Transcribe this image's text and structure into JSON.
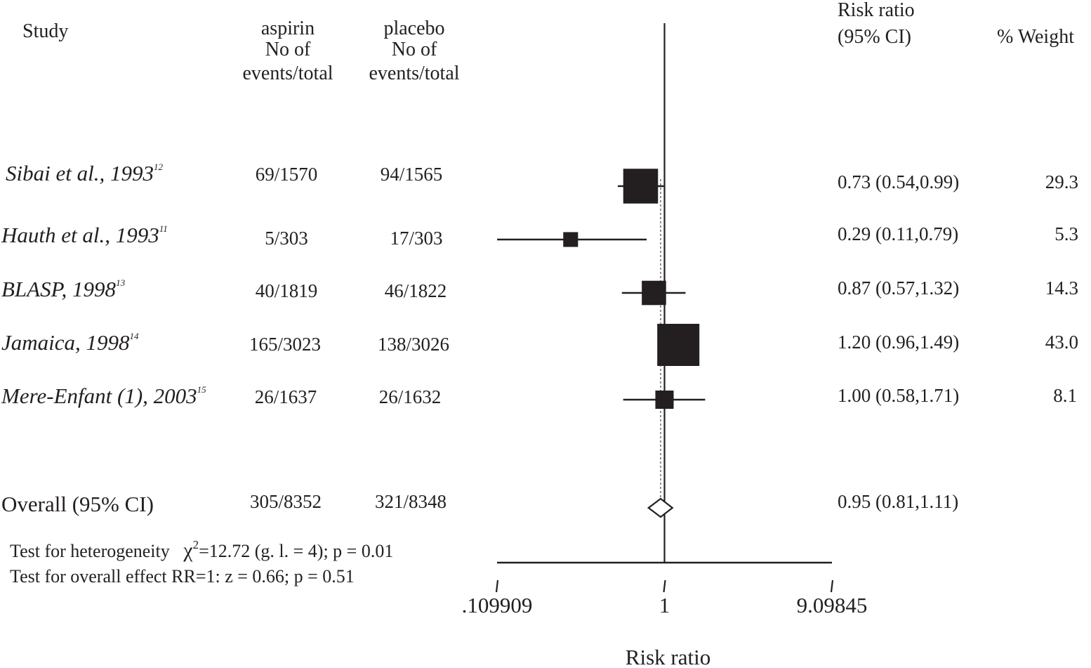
{
  "headers": {
    "study": "Study",
    "aspirin": [
      "aspirin",
      "No of",
      "events/total"
    ],
    "placebo": [
      "placebo",
      "No of",
      "events/total"
    ],
    "risk_ratio": [
      "Risk ratio",
      "(95% CI)"
    ],
    "weight": "% Weight"
  },
  "studies": [
    {
      "name": "Sibai et al., 1993",
      "ref": "12",
      "aspirin": "69/1570",
      "placebo": "94/1565",
      "rr_text": "0.73 (0.54,0.99)",
      "weight": "29.3"
    },
    {
      "name": "Hauth et al., 1993",
      "ref": "11",
      "aspirin": "5/303",
      "placebo": "17/303",
      "rr_text": "0.29 (0.11,0.79)",
      "weight": "5.3"
    },
    {
      "name": "BLASP, 1998",
      "ref": "13",
      "aspirin": "40/1819",
      "placebo": "46/1822",
      "rr_text": "0.87 (0.57,1.32)",
      "weight": "14.3"
    },
    {
      "name": "Jamaica, 1998",
      "ref": "14",
      "aspirin": "165/3023",
      "placebo": "138/3026",
      "rr_text": "1.20 (0.96,1.49)",
      "weight": "43.0"
    },
    {
      "name": "Mere-Enfant (1), 2003",
      "ref": "15",
      "aspirin": "26/1637",
      "placebo": "26/1632",
      "rr_text": "1.00 (0.58,1.71)",
      "weight": "8.1"
    }
  ],
  "overall": {
    "label": "Overall (95% CI)",
    "aspirin": "305/8352",
    "placebo": "321/8348",
    "rr_text": "0.95 (0.81,1.11)"
  },
  "footer": {
    "heterogeneity_prefix": "Test for heterogeneity",
    "chi_symbol": "χ",
    "chi_sup": "2",
    "heterogeneity_rest": "=12.72 (g. l. = 4); p = 0.01",
    "overall_effect": "Test for overall effect RR=1: z = 0.66; p = 0.51"
  },
  "chart_data": {
    "type": "forest",
    "xlabel": "Risk ratio",
    "x_scale": "log",
    "xlim": [
      0.109909,
      9.09845
    ],
    "ticks": [
      {
        "value": 0.109909,
        "label": ".109909"
      },
      {
        "value": 1,
        "label": "1"
      },
      {
        "value": 9.09845,
        "label": "9.09845"
      }
    ],
    "reference_line": 1,
    "pooled_line": 0.95,
    "rows": [
      {
        "label": "Sibai et al., 1993",
        "rr": 0.73,
        "lo": 0.54,
        "hi": 0.99,
        "weight": 29.3
      },
      {
        "label": "Hauth et al., 1993",
        "rr": 0.29,
        "lo": 0.11,
        "hi": 0.79,
        "weight": 5.3
      },
      {
        "label": "BLASP, 1998",
        "rr": 0.87,
        "lo": 0.57,
        "hi": 1.32,
        "weight": 14.3
      },
      {
        "label": "Jamaica, 1998",
        "rr": 1.2,
        "lo": 0.96,
        "hi": 1.49,
        "weight": 43.0
      },
      {
        "label": "Mere-Enfant (1), 2003",
        "rr": 1.0,
        "lo": 0.58,
        "hi": 1.71,
        "weight": 8.1
      }
    ],
    "overall": {
      "rr": 0.95,
      "lo": 0.81,
      "hi": 1.11
    },
    "color": "#231f20"
  }
}
